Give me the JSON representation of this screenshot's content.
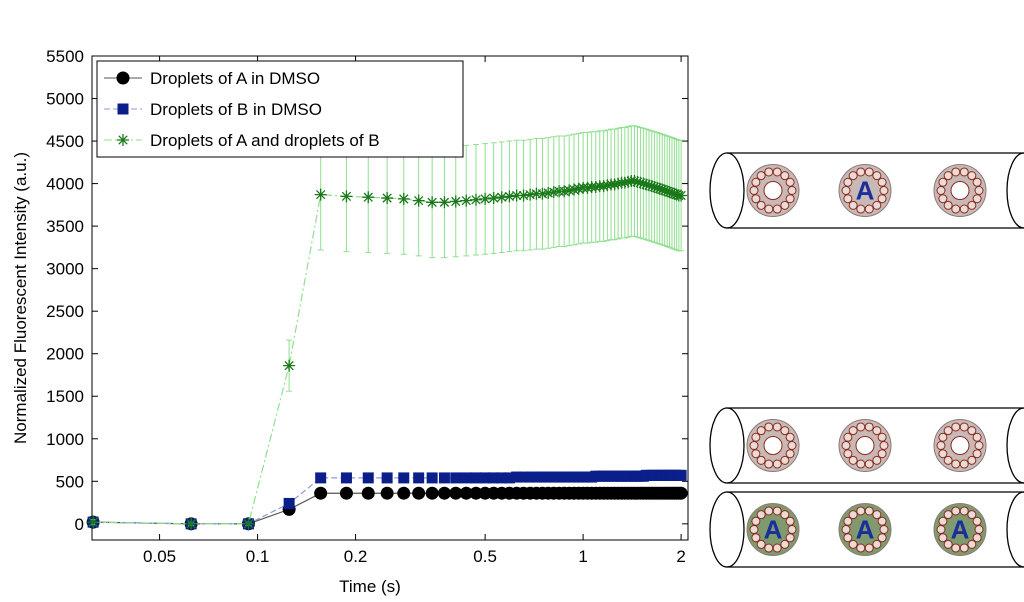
{
  "chart_data": {
    "type": "line",
    "x_scale": "log",
    "xlabel": "Time (s)",
    "ylabel": "Normalized Fluorescent Intensity (a.u.)",
    "xlim": [
      0.031,
      2.1
    ],
    "ylim": [
      -190,
      5500
    ],
    "xticks": [
      0.05,
      0.1,
      0.2,
      0.5,
      1,
      2
    ],
    "yticks": [
      0,
      500,
      1000,
      1500,
      2000,
      2500,
      3000,
      3500,
      4000,
      4500,
      5000,
      5500
    ],
    "legend": "upper left",
    "annotations": [
      "A"
    ],
    "x": [
      0.03125,
      0.0625,
      0.09375,
      0.125,
      0.15625,
      0.1875,
      0.21875,
      0.25,
      0.28125,
      0.3125,
      0.34375,
      0.375,
      0.40625,
      0.4375,
      0.46875,
      0.5,
      0.53125,
      0.5625,
      0.59375,
      0.625,
      0.65625,
      0.6875,
      0.71875,
      0.75,
      0.78125,
      0.8125,
      0.84375,
      0.875,
      0.90625,
      0.9375,
      0.96875,
      1,
      1.03125,
      1.0625,
      1.09375,
      1.125,
      1.15625,
      1.1875,
      1.21875,
      1.25,
      1.28125,
      1.3125,
      1.34375,
      1.375,
      1.40625,
      1.4375,
      1.46875,
      1.5,
      1.53125,
      1.5625,
      1.59375,
      1.625,
      1.65625,
      1.6875,
      1.71875,
      1.75,
      1.78125,
      1.8125,
      1.84375,
      1.875,
      1.90625,
      1.9375,
      1.96875,
      2
    ],
    "series": [
      {
        "name": "Droplets of A in DMSO",
        "marker": "circle",
        "color": "#000000",
        "line_color": "#555555",
        "values": [
          20,
          0,
          0,
          170,
          360,
          360,
          360,
          360,
          360,
          360,
          360,
          360,
          360,
          360,
          360,
          360,
          360,
          360,
          360,
          360,
          360,
          360,
          360,
          360,
          360,
          360,
          360,
          360,
          360,
          360,
          360,
          360,
          360,
          360,
          360,
          360,
          360,
          360,
          360,
          360,
          360,
          360,
          360,
          360,
          360,
          360,
          360,
          360,
          360,
          360,
          360,
          360,
          360,
          360,
          360,
          360,
          360,
          360,
          360,
          360,
          360,
          360,
          360,
          360
        ]
      },
      {
        "name": "Droplets of B in DMSO",
        "marker": "square",
        "color": "#0a1f8a",
        "line_color": "#8f9ad8",
        "values": [
          20,
          0,
          0,
          240,
          540,
          540,
          540,
          540,
          540,
          540,
          540,
          540,
          540,
          540,
          540,
          540,
          540,
          540,
          540,
          550,
          550,
          550,
          550,
          550,
          550,
          550,
          550,
          550,
          550,
          550,
          550,
          550,
          550,
          550,
          560,
          560,
          560,
          560,
          560,
          560,
          560,
          560,
          560,
          560,
          560,
          560,
          560,
          560,
          560,
          570,
          570,
          570,
          570,
          570,
          570,
          570,
          570,
          570,
          570,
          570,
          570,
          570,
          570,
          570
        ]
      },
      {
        "name": "Droplets of A and droplets of B",
        "marker": "asterisk",
        "color": "#1a7a1a",
        "line_color": "#8fe08f",
        "values": [
          20,
          0,
          0,
          1860,
          3870,
          3850,
          3840,
          3830,
          3820,
          3800,
          3780,
          3780,
          3790,
          3800,
          3810,
          3820,
          3830,
          3840,
          3850,
          3860,
          3860,
          3870,
          3880,
          3880,
          3890,
          3900,
          3910,
          3910,
          3920,
          3930,
          3940,
          3950,
          3950,
          3960,
          3960,
          3970,
          3970,
          3980,
          3990,
          3990,
          4000,
          4010,
          4010,
          4020,
          4030,
          4030,
          4020,
          4010,
          4000,
          3990,
          3980,
          3970,
          3960,
          3950,
          3940,
          3930,
          3920,
          3910,
          3900,
          3890,
          3880,
          3870,
          3860,
          3860
        ],
        "errors": [
          30,
          20,
          20,
          300,
          650,
          650,
          650,
          650,
          650,
          650,
          650,
          650,
          650,
          650,
          650,
          650,
          650,
          650,
          650,
          650,
          650,
          650,
          650,
          650,
          650,
          650,
          650,
          650,
          650,
          650,
          650,
          650,
          650,
          650,
          650,
          650,
          650,
          650,
          650,
          650,
          650,
          650,
          650,
          650,
          650,
          650,
          650,
          650,
          650,
          650,
          650,
          650,
          650,
          650,
          650,
          650,
          650,
          650,
          650,
          650,
          650,
          650,
          650,
          650
        ]
      }
    ]
  }
}
